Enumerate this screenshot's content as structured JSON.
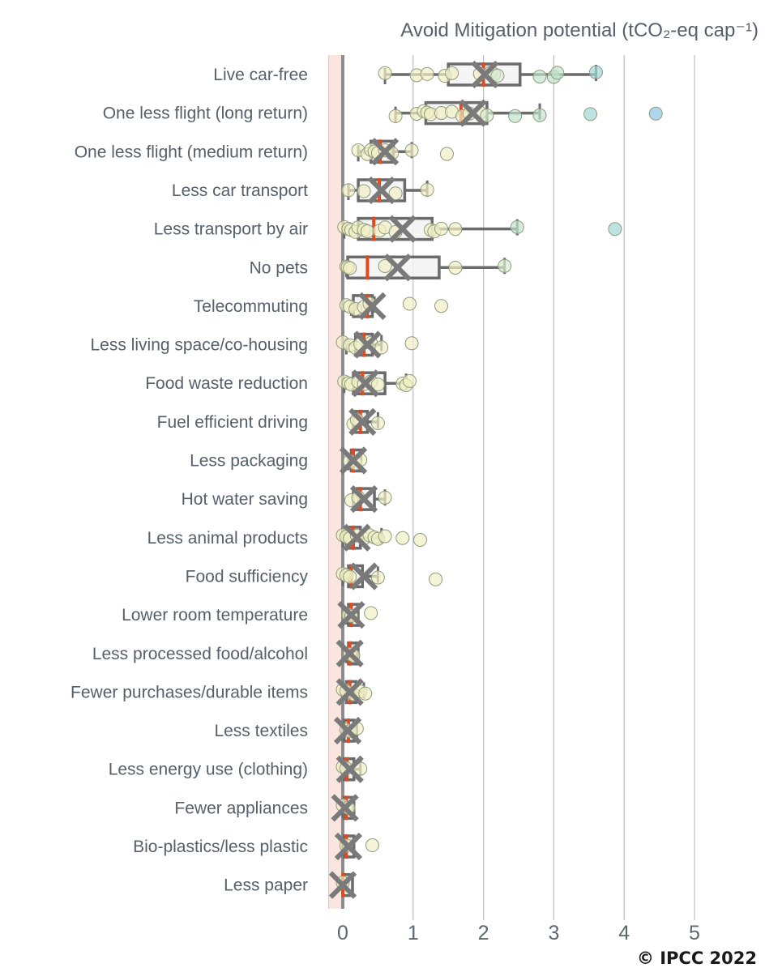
{
  "chart_data": {
    "type": "box",
    "orientation": "horizontal",
    "title": "Avoid Mitigation potential (tCO₂-eq cap⁻¹)",
    "xlabel": "",
    "ylabel": "",
    "xlim": [
      -0.2,
      5.3
    ],
    "xticks": [
      0,
      1,
      2,
      3,
      4,
      5
    ],
    "xtick_labels": [
      "0",
      "1",
      "2",
      "3",
      "4",
      "5"
    ],
    "grid": "vertical",
    "shaded_band": {
      "from": -0.2,
      "to": 0,
      "color": "#fbe6df"
    },
    "credit": "© IPCC 2022",
    "colors": {
      "box_stroke": "#6b6b6b",
      "box_fill": "#f3f3f3",
      "median": "#e5481a",
      "mean_marker": "#7a7a7a",
      "zero_line": "#8a8c8f",
      "grid": "#bdbdbd",
      "point_low": "#f1f0c4",
      "point_mid": "#bfe3cc",
      "point_high": "#9fd5d5",
      "point_max": "#8fc3e6"
    },
    "categories": [
      "Live car-free",
      "One less flight (long return)",
      "One less flight (medium return)",
      "Less car transport",
      "Less transport by air",
      "No pets",
      "Telecommuting",
      "Less living space/co-housing",
      "Food waste reduction",
      "Fuel efficient driving",
      "Less packaging",
      "Hot water saving",
      "Less animal products",
      "Food sufficiency",
      "Lower room temperature",
      "Less processed food/alcohol",
      "Fewer purchases/durable items",
      "Less textiles",
      "Less energy use (clothing)",
      "Fewer appliances",
      "Bio-plastics/less plastic",
      "Less paper"
    ],
    "boxes": [
      {
        "min": 0.6,
        "q1": 1.5,
        "median": 2.0,
        "q3": 2.52,
        "max": 3.6,
        "mean": 2.02,
        "points": [
          0.6,
          1.05,
          1.2,
          1.45,
          1.55,
          1.95,
          2.1,
          2.15,
          2.2,
          2.8,
          3.0,
          3.05,
          3.6
        ]
      },
      {
        "min": 0.75,
        "q1": 1.18,
        "median": 1.68,
        "q3": 2.05,
        "max": 2.8,
        "mean": 1.85,
        "points": [
          0.75,
          1.05,
          1.15,
          1.2,
          1.25,
          1.4,
          1.55,
          1.7,
          1.8,
          1.95,
          2.05,
          2.45,
          2.8,
          3.52,
          4.45
        ]
      },
      {
        "min": 0.22,
        "q1": 0.4,
        "median": 0.53,
        "q3": 0.72,
        "max": 0.98,
        "mean": 0.6,
        "points": [
          0.22,
          0.35,
          0.4,
          0.45,
          0.5,
          0.6,
          0.7,
          0.98,
          1.48
        ]
      },
      {
        "min": 0.08,
        "q1": 0.22,
        "median": 0.52,
        "q3": 0.88,
        "max": 1.2,
        "mean": 0.55,
        "points": [
          0.08,
          0.3,
          0.75,
          1.2
        ]
      },
      {
        "min": 0.02,
        "q1": 0.22,
        "median": 0.44,
        "q3": 1.27,
        "max": 2.48,
        "mean": 0.85,
        "points": [
          0.02,
          0.08,
          0.12,
          0.18,
          0.22,
          0.3,
          0.35,
          0.52,
          0.6,
          0.75,
          1.25,
          1.3,
          1.4,
          1.6,
          2.48,
          3.87
        ]
      },
      {
        "min": 0.05,
        "q1": 0.07,
        "median": 0.35,
        "q3": 1.37,
        "max": 2.3,
        "mean": 0.78,
        "points": [
          0.05,
          0.07,
          0.1,
          0.6,
          1.6,
          2.3
        ]
      },
      {
        "min": 0.12,
        "q1": 0.15,
        "median": 0.35,
        "q3": 0.42,
        "max": 0.45,
        "mean": 0.42,
        "points": [
          0.05,
          0.1,
          0.18,
          0.3,
          0.38,
          0.95,
          1.4
        ]
      },
      {
        "min": 0.05,
        "q1": 0.18,
        "median": 0.3,
        "q3": 0.42,
        "max": 0.55,
        "mean": 0.35,
        "points": [
          0.0,
          0.1,
          0.18,
          0.25,
          0.4,
          0.55,
          0.98
        ]
      },
      {
        "min": 0.02,
        "q1": 0.15,
        "median": 0.28,
        "q3": 0.6,
        "max": 0.9,
        "mean": 0.32,
        "points": [
          0.02,
          0.08,
          0.12,
          0.22,
          0.3,
          0.4,
          0.5,
          0.85,
          0.9,
          0.95
        ]
      },
      {
        "min": 0.15,
        "q1": 0.15,
        "median": 0.25,
        "q3": 0.35,
        "max": 0.5,
        "mean": 0.28,
        "points": [
          0.15,
          0.2,
          0.5
        ]
      },
      {
        "min": 0.08,
        "q1": 0.12,
        "median": 0.15,
        "q3": 0.2,
        "max": 0.25,
        "mean": 0.15,
        "points": [
          0.1,
          0.18,
          0.25
        ]
      },
      {
        "min": 0.15,
        "q1": 0.15,
        "median": 0.25,
        "q3": 0.45,
        "max": 0.6,
        "mean": 0.3,
        "points": [
          0.12,
          0.22,
          0.6
        ]
      },
      {
        "min": 0.0,
        "q1": 0.05,
        "median": 0.15,
        "q3": 0.25,
        "max": 0.55,
        "mean": 0.2,
        "points": [
          0.0,
          0.05,
          0.1,
          0.2,
          0.3,
          0.38,
          0.45,
          0.5,
          0.6,
          0.85,
          1.1
        ]
      },
      {
        "min": 0.0,
        "q1": 0.08,
        "median": 0.12,
        "q3": 0.28,
        "max": 0.5,
        "mean": 0.3,
        "points": [
          0.0,
          0.05,
          0.1,
          0.5,
          1.32
        ]
      },
      {
        "min": 0.05,
        "q1": 0.08,
        "median": 0.12,
        "q3": 0.15,
        "max": 0.2,
        "mean": 0.12,
        "points": [
          0.08,
          0.12,
          0.4
        ]
      },
      {
        "min": 0.05,
        "q1": 0.08,
        "median": 0.1,
        "q3": 0.12,
        "max": 0.15,
        "mean": 0.1,
        "points": [
          0.1,
          0.15
        ]
      },
      {
        "min": 0.0,
        "q1": 0.05,
        "median": 0.1,
        "q3": 0.15,
        "max": 0.3,
        "mean": 0.1,
        "points": [
          0.0,
          0.05,
          0.15,
          0.25,
          0.32
        ]
      },
      {
        "min": 0.0,
        "q1": 0.02,
        "median": 0.08,
        "q3": 0.1,
        "max": 0.2,
        "mean": 0.07,
        "points": [
          0.05,
          0.1,
          0.2
        ]
      },
      {
        "min": 0.0,
        "q1": 0.02,
        "median": 0.06,
        "q3": 0.12,
        "max": 0.25,
        "mean": 0.1,
        "points": [
          0.0,
          0.05,
          0.25
        ]
      },
      {
        "min": 0.0,
        "q1": 0.02,
        "median": 0.05,
        "q3": 0.08,
        "max": 0.12,
        "mean": 0.03,
        "points": [
          0.0,
          0.08
        ]
      },
      {
        "min": 0.0,
        "q1": 0.02,
        "median": 0.05,
        "q3": 0.08,
        "max": 0.12,
        "mean": 0.08,
        "points": [
          0.05,
          0.42
        ]
      },
      {
        "min": 0.0,
        "q1": 0.0,
        "median": 0.0,
        "q3": 0.02,
        "max": 0.05,
        "mean": 0.0,
        "points": [
          0.0
        ]
      }
    ]
  }
}
